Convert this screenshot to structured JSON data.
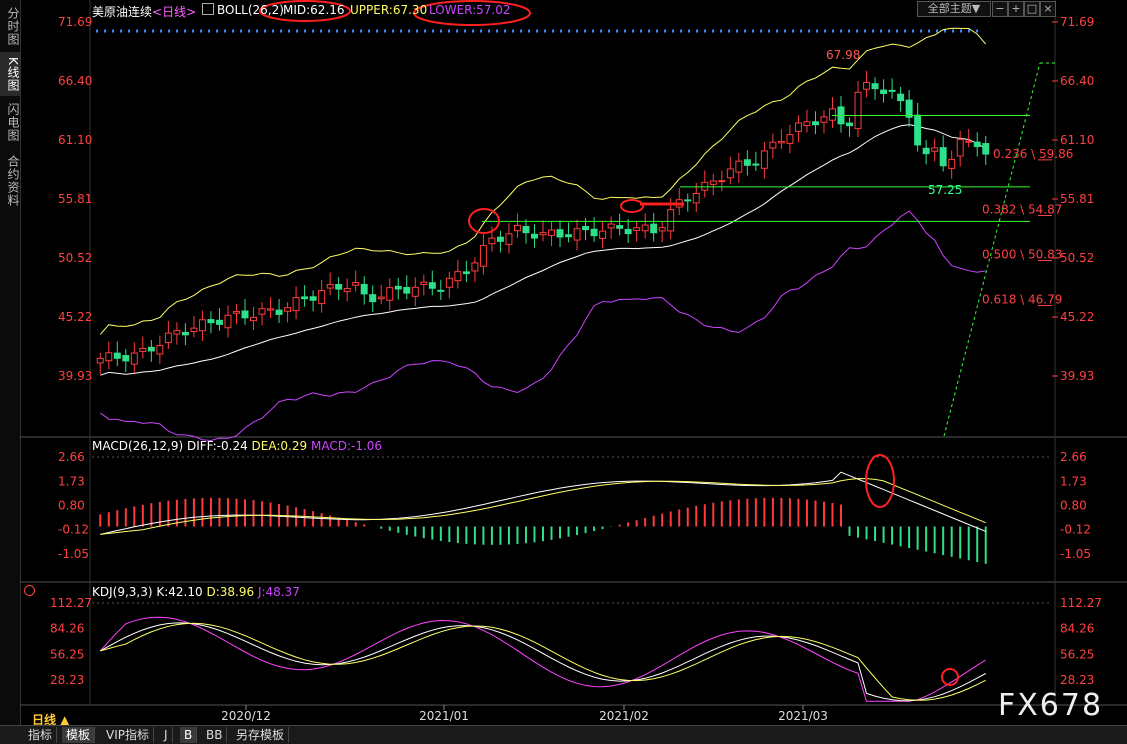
{
  "sidebar": {
    "tabs": [
      "分时图",
      "K线图",
      "闪电图",
      "合约资料"
    ],
    "active": 1
  },
  "header": {
    "title": "美原油连续",
    "period": "<日线>",
    "boll_label": "BOLL(26,2)",
    "mid": "MID:62.16",
    "upper": "UPPER:67.30",
    "lower": "LOWER:57.02",
    "theme_button": "全部主题▼"
  },
  "macd_header": {
    "name": "MACD(26,12,9)",
    "diff": "DIFF:-0.24",
    "dea": "DEA:0.29",
    "macd": "MACD:-1.06"
  },
  "kdj_header": {
    "name": "KDJ(9,3,3)",
    "k": "K:42.10",
    "d": "D:38.96",
    "j": "J:48.37"
  },
  "period_label": "日线 ▲",
  "watermark": "FX678",
  "bottom_tabs": [
    "指标",
    "模板",
    "VIP指标",
    "J",
    "B",
    "BB",
    "另存模板"
  ],
  "chart_data": {
    "type": "candlestick",
    "price_axis": [
      "71.69",
      "66.40",
      "61.10",
      "55.81",
      "50.52",
      "45.22",
      "39.93"
    ],
    "macd_axis": [
      "2.66",
      "1.73",
      "0.80",
      "-0.12",
      "-1.05"
    ],
    "kdj_axis": [
      "112.27",
      "84.26",
      "56.25",
      "28.23"
    ],
    "x_labels": [
      "2020/12",
      "2021/01",
      "2021/02",
      "2021/03"
    ],
    "annotations": {
      "high": "67.98",
      "low": "57.25"
    },
    "fib_levels": [
      {
        "label": "0.236 \\ 59.86",
        "value": 59.86
      },
      {
        "label": "0.382 \\ 54.87",
        "value": 54.87
      },
      {
        "label": "0.500 \\ 50.83",
        "value": 50.83
      },
      {
        "label": "0.618 \\ 46.79",
        "value": 46.79
      }
    ],
    "hlines": [
      63.3,
      56.9,
      53.8
    ],
    "colors": {
      "up": "#ff3b3b",
      "down": "#2ee08a",
      "upper": "#ffff66",
      "mid": "#ffffff",
      "lower": "#cc44ff",
      "axis": "#ff4040",
      "green_line": "#33ff33"
    }
  }
}
